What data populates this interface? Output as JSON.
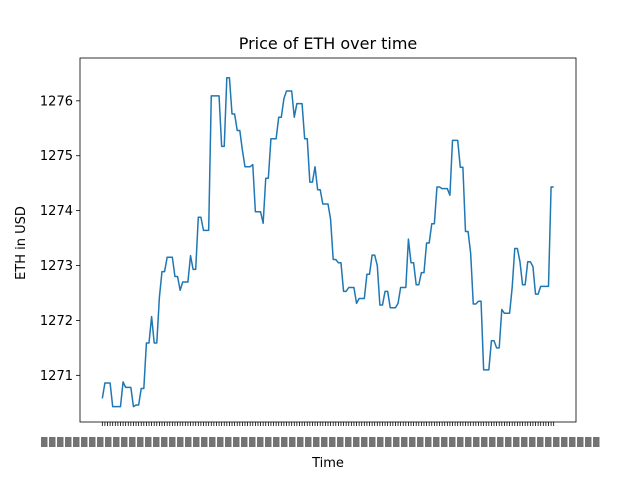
{
  "chart_data": {
    "type": "line",
    "title": "Price of ETH over time",
    "xlabel": "Time",
    "ylabel": "ETH in USD",
    "ylim": [
      1270.15,
      1276.78
    ],
    "yticks": [
      1271,
      1272,
      1273,
      1274,
      1275,
      1276
    ],
    "grid": false,
    "line_color": "#1f77b4",
    "n_points": 175,
    "x_tick_labels_overlapping": true,
    "series": [
      {
        "values": [
          1270.58,
          1270.86,
          1270.86,
          1270.86,
          1270.43,
          1270.43,
          1270.43,
          1270.43,
          1270.88,
          1270.78,
          1270.78,
          1270.78,
          1270.43,
          1270.46,
          1270.46,
          1270.76,
          1270.76,
          1271.59,
          1271.59,
          1272.07,
          1271.59,
          1271.59,
          1272.42,
          1272.89,
          1272.89,
          1273.15,
          1273.15,
          1273.15,
          1272.8,
          1272.8,
          1272.55,
          1272.7,
          1272.7,
          1272.7,
          1273.18,
          1272.93,
          1272.93,
          1273.88,
          1273.88,
          1273.64,
          1273.64,
          1273.64,
          1276.09,
          1276.09,
          1276.09,
          1276.09,
          1275.17,
          1275.17,
          1276.42,
          1276.42,
          1275.76,
          1275.76,
          1275.46,
          1275.46,
          1275.1,
          1274.8,
          1274.8,
          1274.8,
          1274.84,
          1273.98,
          1273.98,
          1273.98,
          1273.77,
          1274.59,
          1274.59,
          1275.31,
          1275.31,
          1275.31,
          1275.7,
          1275.7,
          1276.04,
          1276.18,
          1276.18,
          1276.18,
          1275.7,
          1275.95,
          1275.95,
          1275.95,
          1275.31,
          1275.31,
          1274.52,
          1274.52,
          1274.8,
          1274.38,
          1274.38,
          1274.12,
          1274.12,
          1274.12,
          1273.84,
          1273.11,
          1273.11,
          1273.05,
          1273.05,
          1272.53,
          1272.53,
          1272.6,
          1272.6,
          1272.6,
          1272.31,
          1272.4,
          1272.4,
          1272.4,
          1272.84,
          1272.84,
          1273.19,
          1273.19,
          1273.0,
          1272.28,
          1272.28,
          1272.53,
          1272.53,
          1272.23,
          1272.23,
          1272.23,
          1272.31,
          1272.6,
          1272.6,
          1272.6,
          1273.48,
          1273.05,
          1273.05,
          1272.65,
          1272.65,
          1272.87,
          1272.87,
          1273.41,
          1273.41,
          1273.76,
          1273.76,
          1274.43,
          1274.43,
          1274.4,
          1274.4,
          1274.4,
          1274.28,
          1275.28,
          1275.28,
          1275.28,
          1274.79,
          1274.79,
          1273.62,
          1273.62,
          1273.22,
          1272.3,
          1272.3,
          1272.35,
          1272.35,
          1271.1,
          1271.1,
          1271.1,
          1271.63,
          1271.63,
          1271.5,
          1271.5,
          1272.2,
          1272.13,
          1272.13,
          1272.13,
          1272.6,
          1273.31,
          1273.31,
          1273.07,
          1272.65,
          1272.65,
          1273.07,
          1273.07,
          1272.98,
          1272.48,
          1272.48,
          1272.62,
          1272.62,
          1272.62,
          1272.62,
          1274.43,
          1274.43
        ]
      }
    ]
  }
}
